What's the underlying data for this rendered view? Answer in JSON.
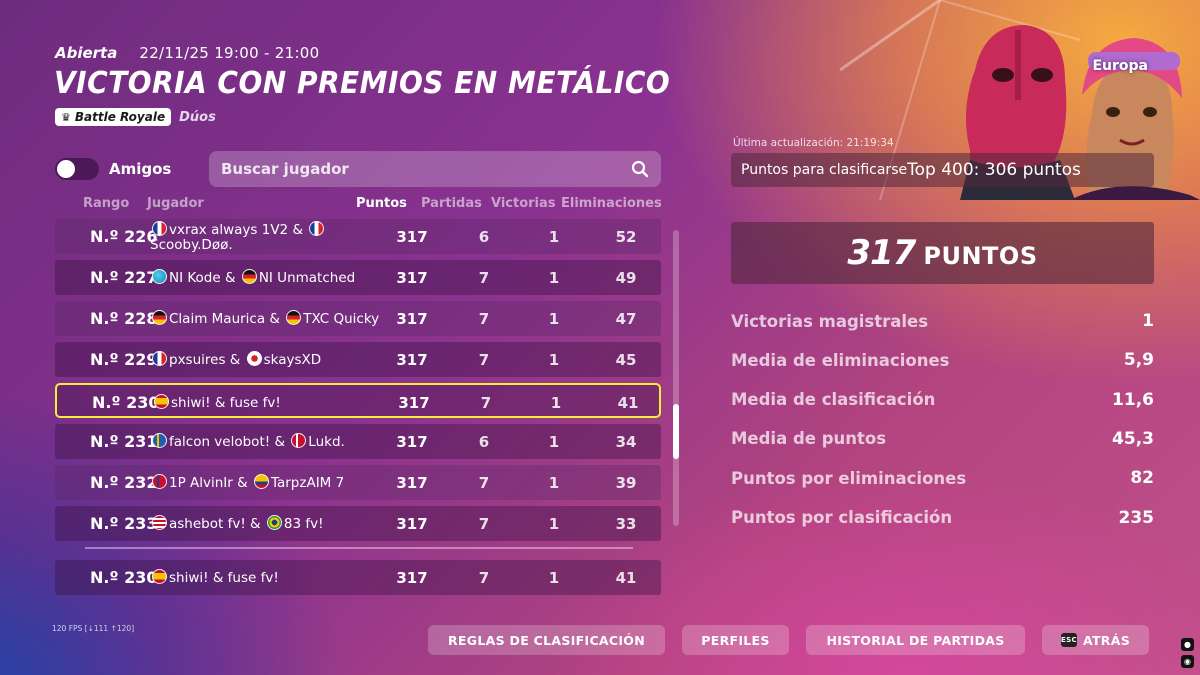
{
  "header": {
    "status": "Abierta",
    "time_range": "22/11/25 19:00 - 21:00",
    "title": "VICTORIA CON PREMIOS EN METÁLICO",
    "mode_badge": "Battle Royale",
    "mode_type": "Dúos",
    "region": "Europa"
  },
  "filters": {
    "friends_label": "Amigos",
    "friends_toggle_on": false,
    "search_placeholder": "Buscar jugador"
  },
  "columns": {
    "rank": "Rango",
    "player": "Jugador",
    "points": "Puntos",
    "matches": "Partidas",
    "wins": "Victorias",
    "eliminations": "Eliminaciones"
  },
  "rows": [
    {
      "rank": "N.º 226",
      "p1_flag": "fr",
      "p1": "vxrax always 1V2",
      "p2_flag": "fr",
      "p2": "Scooby.Døø.",
      "points": "317",
      "matches": "6",
      "wins": "1",
      "elims": "52"
    },
    {
      "rank": "N.º 227",
      "p1_flag": "world",
      "p1": "NI Kode",
      "p2_flag": "de",
      "p2": "NI Unmatched",
      "points": "317",
      "matches": "7",
      "wins": "1",
      "elims": "49"
    },
    {
      "rank": "N.º 228",
      "p1_flag": "de",
      "p1": "Claim Maurica",
      "p2_flag": "de",
      "p2": "TXC Quicky",
      "points": "317",
      "matches": "7",
      "wins": "1",
      "elims": "47"
    },
    {
      "rank": "N.º 229",
      "p1_flag": "fr",
      "p1": "pxsuires",
      "p2_flag": "jp",
      "p2": "skaysXD",
      "points": "317",
      "matches": "7",
      "wins": "1",
      "elims": "45"
    },
    {
      "rank": "N.º 230",
      "p1_flag": "es",
      "p1": "shiwi!",
      "p2_flag": "",
      "p2": "fuse fv!",
      "points": "317",
      "matches": "7",
      "wins": "1",
      "elims": "41"
    },
    {
      "rank": "N.º 231",
      "p1_flag": "se",
      "p1": "falcon velobot!",
      "p2_flag": "dk",
      "p2": "Lukd.",
      "points": "317",
      "matches": "6",
      "wins": "1",
      "elims": "34"
    },
    {
      "rank": "N.º 232",
      "p1_flag": "no",
      "p1": "1P AlvinIr",
      "p2_flag": "co",
      "p2": "TarpzAIM 7",
      "points": "317",
      "matches": "7",
      "wins": "1",
      "elims": "39"
    },
    {
      "rank": "N.º 233",
      "p1_flag": "us",
      "p1": "ashebot fv!",
      "p2_flag": "br",
      "p2": "83 fv!",
      "points": "317",
      "matches": "7",
      "wins": "1",
      "elims": "33"
    }
  ],
  "pinned_row": {
    "rank": "N.º 230",
    "p1_flag": "es",
    "p1": "shiwi!",
    "p2_flag": "",
    "p2": "fuse fv!",
    "points": "317",
    "matches": "7",
    "wins": "1",
    "elims": "41"
  },
  "highlighted_index": 4,
  "scroll_fraction": 0.72,
  "summary": {
    "last_updated": "Última actualización: 21:19:34",
    "qualify_label": "Puntos para clasificarse",
    "qualify_value": "Top 400: 306 puntos",
    "points_value": "317",
    "points_label": "PUNTOS",
    "stats": [
      {
        "label": "Victorias magistrales",
        "value": "1"
      },
      {
        "label": "Media de eliminaciones",
        "value": "5,9"
      },
      {
        "label": "Media de clasificación",
        "value": "11,6"
      },
      {
        "label": "Media de puntos",
        "value": "45,3"
      },
      {
        "label": "Puntos por eliminaciones",
        "value": "82"
      },
      {
        "label": "Puntos por clasificación",
        "value": "235"
      }
    ]
  },
  "fps_text": "120 FPS [↓111 ↑120]",
  "buttons": {
    "rules": "REGLAS DE CLASIFICACIÓN",
    "profiles": "PERFILES",
    "history": "HISTORIAL DE PARTIDAS",
    "back": "ATRÁS",
    "back_key": "ESC"
  },
  "colors": {
    "highlight_border": "#f6ec3a",
    "accent_orange": "#f0a040"
  }
}
